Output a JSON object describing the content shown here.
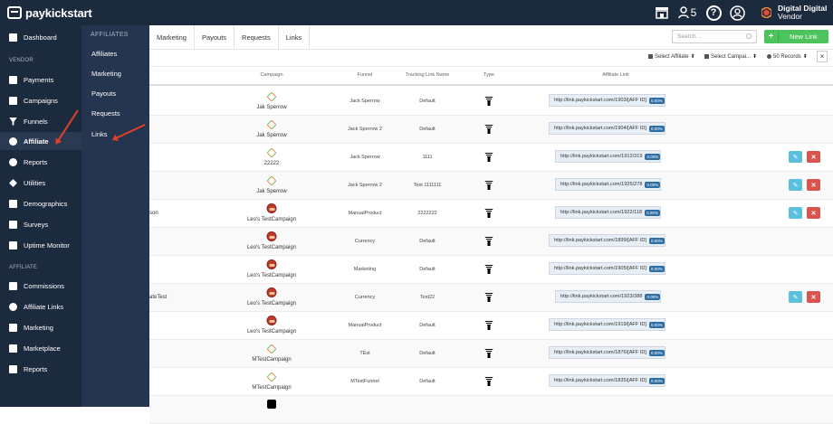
{
  "brand": {
    "name": "paykickstart"
  },
  "topbar": {
    "notifications_count": "5",
    "user_name": "Digital Digital",
    "user_role": "Vendor",
    "user_avatar_icon": "user-circle-icon",
    "store_icon": "store-icon",
    "help_icon": "help-icon"
  },
  "sidebar": {
    "items_top": [
      {
        "label": "Dashboard",
        "icon": "dashboard-icon"
      }
    ],
    "section_vendor": "VENDOR",
    "items_vendor": [
      {
        "label": "Payments",
        "icon": "payments-icon"
      },
      {
        "label": "Campaigns",
        "icon": "campaigns-icon"
      },
      {
        "label": "Funnels",
        "icon": "funnel-icon"
      },
      {
        "label": "Affiliate",
        "icon": "affiliate-icon"
      },
      {
        "label": "Reports",
        "icon": "reports-icon"
      },
      {
        "label": "Utilities",
        "icon": "wrench-icon"
      },
      {
        "label": "Demographics",
        "icon": "chart-icon"
      },
      {
        "label": "Surveys",
        "icon": "survey-icon"
      },
      {
        "label": "Uptime Monitor",
        "icon": "monitor-icon"
      }
    ],
    "section_affiliate": "AFFILIATE",
    "items_affiliate": [
      {
        "label": "Commissions",
        "icon": "commissions-icon"
      },
      {
        "label": "Affiliate Links",
        "icon": "link-icon"
      },
      {
        "label": "Marketing",
        "icon": "marketing-icon"
      },
      {
        "label": "Marketplace",
        "icon": "marketplace-icon"
      },
      {
        "label": "Reports",
        "icon": "reports-icon"
      }
    ]
  },
  "subpanel": {
    "heading": "AFFILIATES",
    "items": [
      "Affiliates",
      "Marketing",
      "Payouts",
      "Requests",
      "Links"
    ]
  },
  "tabs": [
    "Marketing",
    "Payouts",
    "Requests",
    "Links"
  ],
  "search": {
    "placeholder": "Search..."
  },
  "new_link_button": {
    "label": "New Link"
  },
  "filters": {
    "affiliate": "Select Affiliate",
    "campaign": "Select Campai...",
    "records": "50 Records",
    "close": "×"
  },
  "table": {
    "columns": {
      "campaign": "Campaign",
      "funnel": "Funnel",
      "tracking": "Tracking Link Name",
      "type": "Type",
      "affiliate_link": "Affiliate Link"
    },
    "rows": [
      {
        "partial": "",
        "icon": "hex",
        "campaign": "Jak Sperrow",
        "funnel": "Jack Sperrow",
        "tracking": "Default",
        "link": "http://link.paykickstart.com/1903/[AFF ID]",
        "pct": "0.00%",
        "actions": false
      },
      {
        "partial": "",
        "icon": "hex",
        "campaign": "Jak Sperrow",
        "funnel": "Jack Sperrow 2",
        "tracking": "Default",
        "link": "http://link.paykickstart.com/1904/[AFF ID]",
        "pct": "0.00%",
        "actions": false
      },
      {
        "partial": "",
        "icon": "hex",
        "campaign": "22222",
        "funnel": "Jack Sperrow",
        "tracking": "1111",
        "link": "http://link.paykickstart.com/1912/319",
        "pct": "0.00%",
        "actions": true
      },
      {
        "partial": "",
        "icon": "hex",
        "campaign": "Jak Sperrow",
        "funnel": "Jack Sperrow 2",
        "tracking": "Test 1111111",
        "link": "http://link.paykickstart.com/1925/278",
        "pct": "0.00%",
        "actions": true
      },
      {
        "partial": "son",
        "icon": "face",
        "campaign": "Leo's TestCampaign",
        "funnel": "ManualProduct",
        "tracking": "2222222",
        "link": "http://link.paykickstart.com/1922/118",
        "pct": "0.00%",
        "actions": true
      },
      {
        "partial": "",
        "icon": "face",
        "campaign": "Leo's TestCampaign",
        "funnel": "Currency",
        "tracking": "Default",
        "link": "http://link.paykickstart.com/1899/[AFF ID]",
        "pct": "0.00%",
        "actions": false
      },
      {
        "partial": "",
        "icon": "face",
        "campaign": "Leo's TestCampaign",
        "funnel": "Marketing",
        "tracking": "Default",
        "link": "http://link.paykickstart.com/1905/[AFF ID]",
        "pct": "0.00%",
        "actions": false
      },
      {
        "partial": "ateTest",
        "icon": "face",
        "campaign": "Leo's TestCampaign",
        "funnel": "Currency",
        "tracking": "Test22",
        "link": "http://link.paykickstart.com/1923/388",
        "pct": "0.00%",
        "actions": true
      },
      {
        "partial": "",
        "icon": "face",
        "campaign": "Leo's TestCampaign",
        "funnel": "ManualProduct",
        "tracking": "Default",
        "link": "http://link.paykickstart.com/1919/[AFF ID]",
        "pct": "0.00%",
        "actions": false
      },
      {
        "partial": "",
        "icon": "hex",
        "campaign": "MTestCampaign",
        "funnel": "TEst",
        "tracking": "Default",
        "link": "http://link.paykickstart.com/1876/[AFF ID]",
        "pct": "0.00%",
        "actions": false
      },
      {
        "partial": "",
        "icon": "hex",
        "campaign": "MTestCampaign",
        "funnel": "MTestFunnel",
        "tracking": "Default",
        "link": "http://link.paykickstart.com/1835/[AFF ID]",
        "pct": "0.00%",
        "actions": false
      },
      {
        "partial": "",
        "icon": "bw",
        "campaign": "",
        "funnel": "",
        "tracking": "",
        "link": "",
        "pct": "",
        "actions": false
      }
    ]
  },
  "colors": {
    "sidebar": "#1c2a3e",
    "accent_green": "#4cc35c",
    "edit": "#5bc0de",
    "delete": "#d9534f",
    "annotation_arrow": "#e0402a"
  }
}
